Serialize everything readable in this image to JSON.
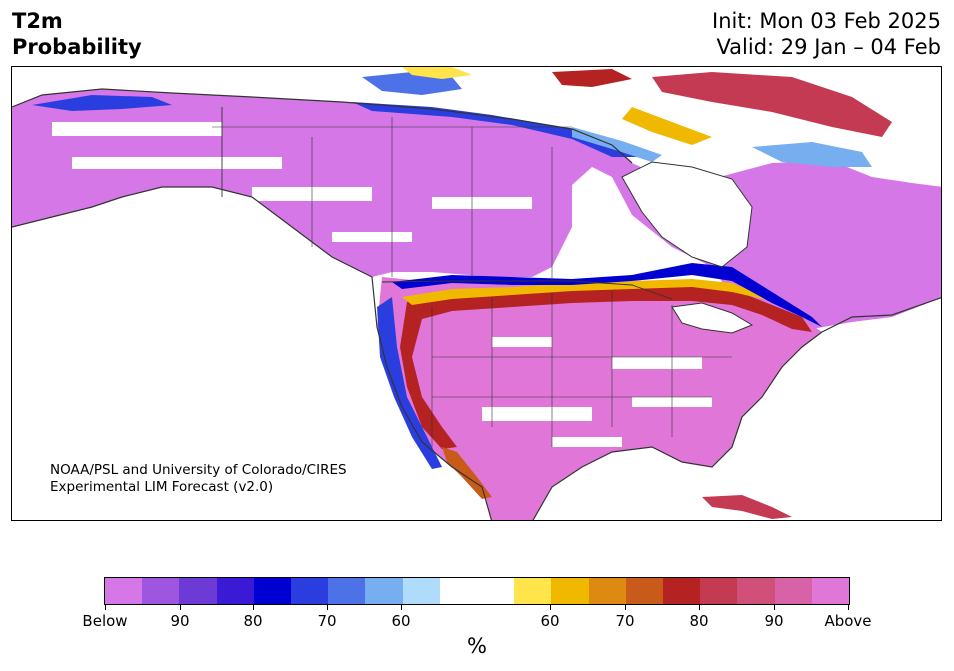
{
  "header": {
    "title_line1": "T2m",
    "title_line2": "Probability",
    "init": "Init: Mon 03 Feb 2025",
    "valid": "Valid: 29 Jan – 04 Feb"
  },
  "map": {
    "credit_line1": "NOAA/PSL and University of Colorado/CIRES",
    "credit_line2": "Experimental LIM Forecast (v2.0)"
  },
  "colorbar": {
    "colors": [
      "#d677e8",
      "#9e55e0",
      "#6e3ad6",
      "#3a1ad4",
      "#0000d2",
      "#2a3ee0",
      "#4d72e8",
      "#76aef0",
      "#b0dcfb",
      "#ffffff",
      "#ffffff",
      "#ffe44c",
      "#f1b800",
      "#dc8a12",
      "#c85a1a",
      "#b42222",
      "#c43a52",
      "#d0507a",
      "#d862a8",
      "#e077d8"
    ],
    "tick_labels": [
      "Below",
      "90",
      "80",
      "70",
      "60",
      "60",
      "70",
      "80",
      "90",
      "Above"
    ],
    "unit": "%"
  }
}
